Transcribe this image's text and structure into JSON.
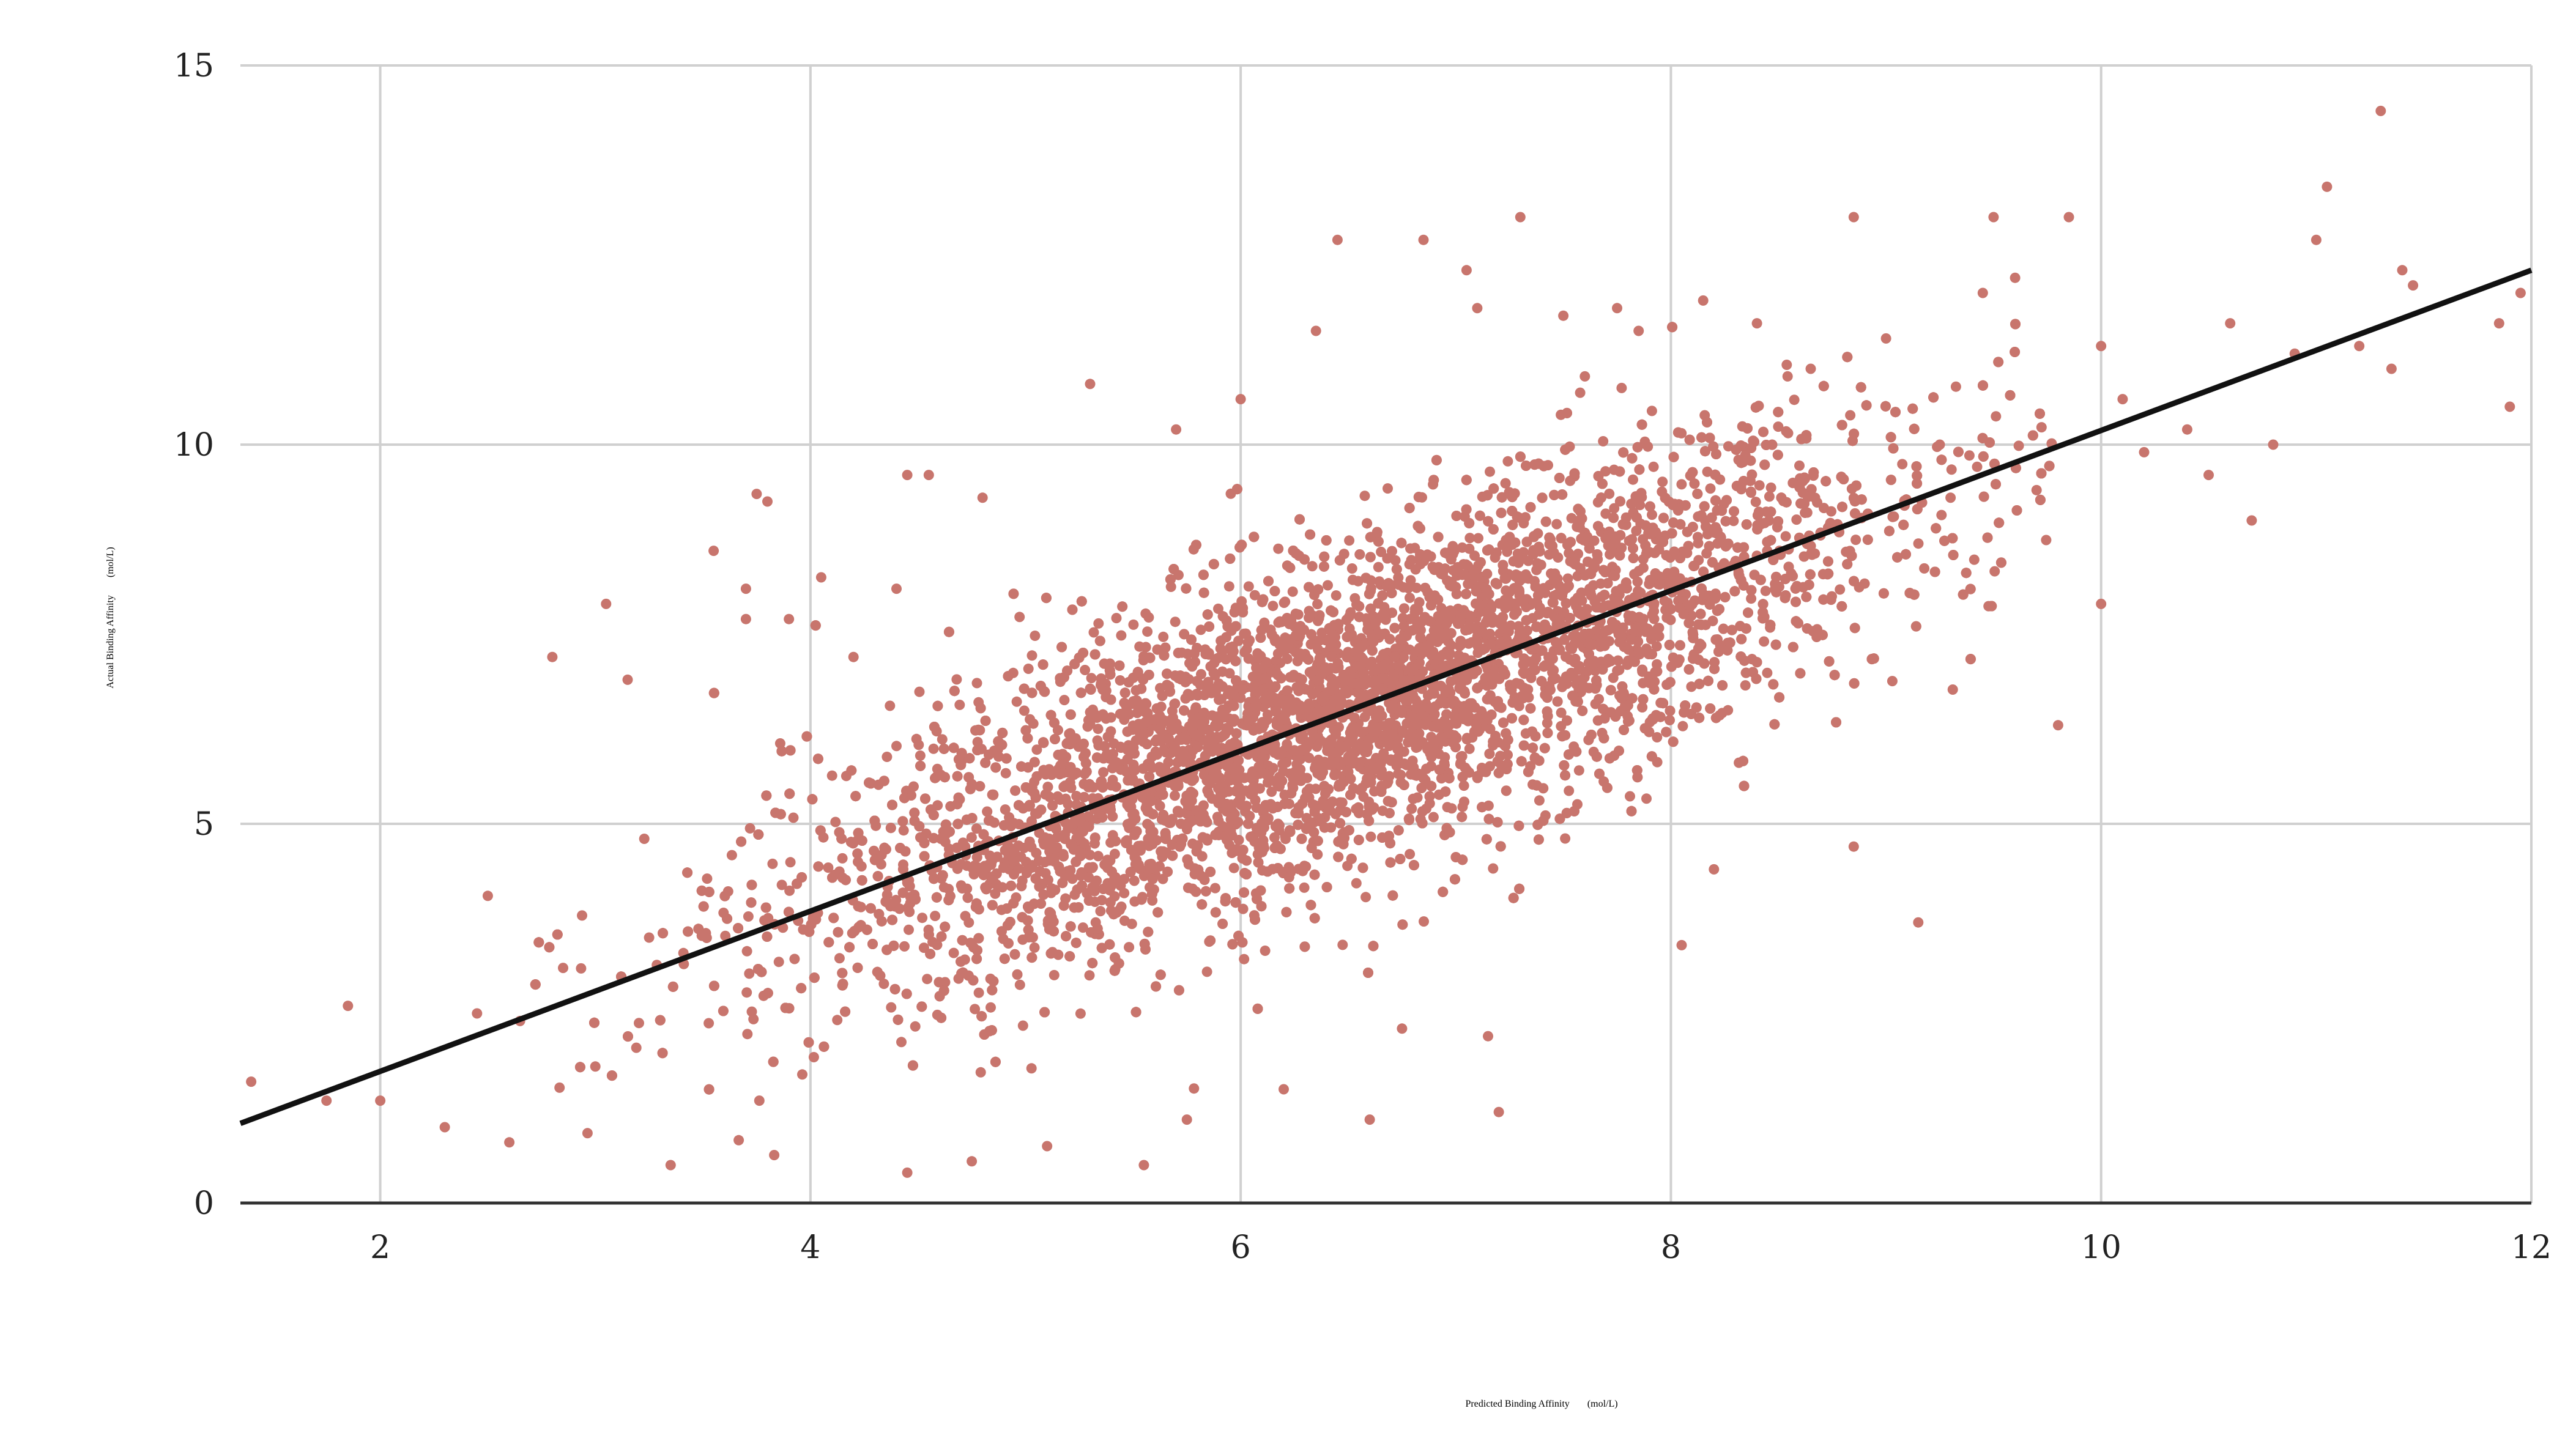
{
  "chart_data": {
    "type": "scatter",
    "title": "",
    "xlabel": "Predicted Binding Affinity",
    "xlabel_unit": "(mol/L)",
    "ylabel": "Actual Binding Affinity",
    "ylabel_unit": "(mol/L)",
    "xlim": [
      1.35,
      12
    ],
    "ylim": [
      0,
      15
    ],
    "x_ticks": [
      2,
      4,
      6,
      8,
      10,
      12
    ],
    "y_ticks": [
      0,
      5,
      10,
      15
    ],
    "x_tick_labels": [
      "2",
      "4",
      "6",
      "8",
      "10",
      "12"
    ],
    "y_tick_labels": [
      "0",
      "5",
      "10",
      "15"
    ],
    "grid": true,
    "legend": "none",
    "point_color": "#c8756d",
    "line_color": "#111111",
    "grid_color": "#d0d0d0",
    "fit_line": {
      "x": [
        1.35,
        12
      ],
      "y": [
        1.05,
        12.3
      ]
    },
    "series": [
      {
        "points": [
          [
            1.4,
            1.6
          ],
          [
            1.75,
            1.35
          ],
          [
            1.85,
            2.6
          ],
          [
            2.0,
            1.35
          ],
          [
            2.3,
            1.0
          ],
          [
            2.45,
            2.5
          ],
          [
            2.5,
            4.05
          ],
          [
            2.6,
            0.8
          ],
          [
            2.65,
            2.4
          ],
          [
            2.8,
            7.2
          ],
          [
            2.85,
            3.1
          ],
          [
            3.0,
            1.8
          ],
          [
            3.05,
            7.9
          ],
          [
            3.15,
            6.9
          ],
          [
            3.25,
            3.5
          ],
          [
            3.35,
            0.5
          ],
          [
            3.55,
            8.6
          ],
          [
            3.7,
            8.1
          ],
          [
            3.75,
            9.35
          ],
          [
            3.8,
            9.25
          ],
          [
            3.7,
            7.7
          ],
          [
            3.9,
            7.7
          ],
          [
            4.05,
            8.25
          ],
          [
            4.2,
            7.2
          ],
          [
            4.4,
            8.1
          ],
          [
            4.45,
            9.6
          ],
          [
            4.55,
            9.6
          ],
          [
            4.45,
            0.4
          ],
          [
            4.75,
            0.55
          ],
          [
            4.8,
            9.3
          ],
          [
            5.1,
            0.75
          ],
          [
            5.3,
            10.8
          ],
          [
            5.55,
            0.5
          ],
          [
            5.7,
            10.2
          ],
          [
            5.75,
            1.1
          ],
          [
            6.0,
            10.6
          ],
          [
            6.2,
            1.5
          ],
          [
            6.35,
            11.5
          ],
          [
            6.45,
            12.7
          ],
          [
            6.6,
            1.1
          ],
          [
            6.75,
            2.3
          ],
          [
            6.85,
            12.7
          ],
          [
            7.05,
            12.3
          ],
          [
            7.1,
            11.8
          ],
          [
            7.15,
            2.2
          ],
          [
            7.2,
            1.2
          ],
          [
            7.3,
            13.0
          ],
          [
            7.5,
            11.7
          ],
          [
            7.6,
            10.9
          ],
          [
            7.75,
            11.8
          ],
          [
            7.85,
            11.5
          ],
          [
            8.05,
            3.4
          ],
          [
            8.15,
            11.9
          ],
          [
            8.2,
            4.4
          ],
          [
            8.4,
            11.6
          ],
          [
            8.65,
            11.0
          ],
          [
            8.85,
            13.0
          ],
          [
            8.85,
            4.7
          ],
          [
            9.0,
            11.4
          ],
          [
            9.15,
            3.7
          ],
          [
            9.25,
            10.0
          ],
          [
            9.3,
            9.3
          ],
          [
            9.45,
            12.0
          ],
          [
            9.5,
            13.0
          ],
          [
            9.6,
            12.2
          ],
          [
            9.7,
            9.4
          ],
          [
            9.8,
            6.3
          ],
          [
            9.85,
            13.0
          ],
          [
            10.0,
            11.3
          ],
          [
            10.0,
            7.9
          ],
          [
            10.1,
            10.6
          ],
          [
            10.2,
            9.9
          ],
          [
            10.4,
            10.2
          ],
          [
            10.5,
            9.6
          ],
          [
            10.6,
            11.6
          ],
          [
            10.7,
            9.0
          ],
          [
            10.8,
            10.0
          ],
          [
            10.9,
            11.2
          ],
          [
            11.0,
            12.7
          ],
          [
            11.05,
            13.4
          ],
          [
            11.2,
            11.3
          ],
          [
            11.3,
            14.4
          ],
          [
            11.35,
            11.0
          ],
          [
            11.4,
            12.3
          ],
          [
            11.45,
            12.1
          ],
          [
            11.85,
            11.6
          ],
          [
            11.9,
            10.5
          ],
          [
            11.95,
            12.0
          ]
        ]
      }
    ]
  }
}
